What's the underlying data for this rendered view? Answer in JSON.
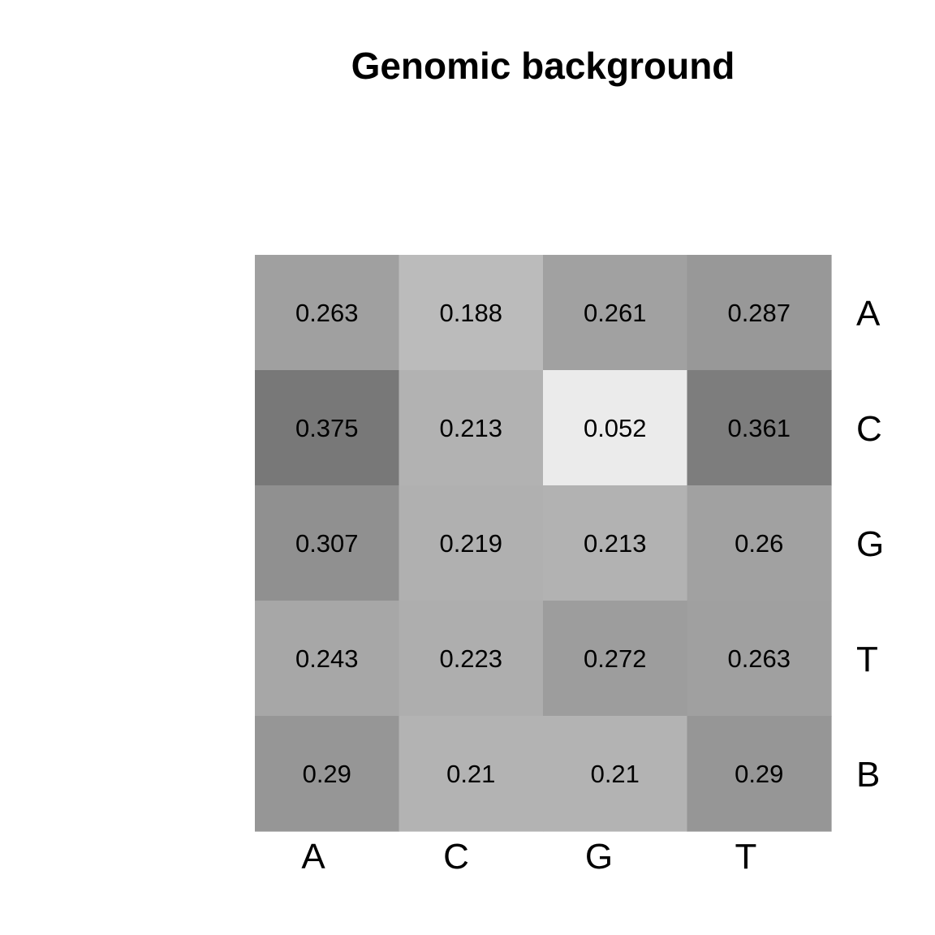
{
  "chart_data": {
    "type": "heatmap",
    "title": "Genomic background",
    "xlabel": "",
    "ylabel": "",
    "columns": [
      "A",
      "C",
      "G",
      "T"
    ],
    "rows": [
      "A",
      "C",
      "G",
      "T",
      "B"
    ],
    "values": [
      [
        0.263,
        0.188,
        0.261,
        0.287
      ],
      [
        0.375,
        0.213,
        0.052,
        0.361
      ],
      [
        0.307,
        0.219,
        0.213,
        0.26
      ],
      [
        0.243,
        0.223,
        0.272,
        0.263
      ],
      [
        0.29,
        0.21,
        0.21,
        0.29
      ]
    ],
    "value_labels": [
      [
        "0.263",
        "0.188",
        "0.261",
        "0.287"
      ],
      [
        "0.375",
        "0.213",
        "0.052",
        "0.361"
      ],
      [
        "0.307",
        "0.219",
        "0.213",
        "0.26"
      ],
      [
        "0.243",
        "0.223",
        "0.272",
        "0.263"
      ],
      [
        "0.29",
        "0.21",
        "0.21",
        "0.29"
      ]
    ],
    "color_scale": "grayscale (higher value = darker)",
    "row_labels_position": "right",
    "column_labels_position": "bottom",
    "grid": false,
    "legend": "none"
  }
}
